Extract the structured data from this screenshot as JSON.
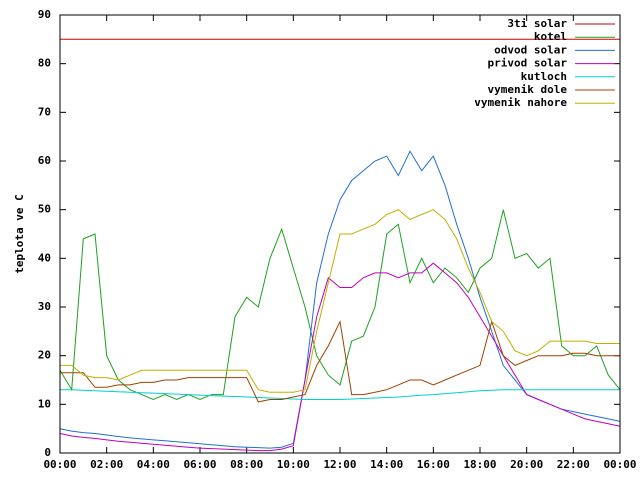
{
  "chart_data": {
    "type": "line",
    "ylabel": "teplota ve C",
    "x": [
      0,
      0.5,
      1,
      1.5,
      2,
      2.5,
      3,
      3.5,
      4,
      4.5,
      5,
      5.5,
      6,
      6.5,
      7,
      7.5,
      8,
      8.5,
      9,
      9.5,
      10,
      10.5,
      11,
      11.5,
      12,
      12.5,
      13,
      13.5,
      14,
      14.5,
      15,
      15.5,
      16,
      16.5,
      17,
      17.5,
      18,
      18.5,
      19,
      19.5,
      20,
      20.5,
      21,
      21.5,
      22,
      22.5,
      23,
      23.5,
      24
    ],
    "xlim": [
      0,
      24
    ],
    "xticks": [
      {
        "value": 0,
        "label": "00:00"
      },
      {
        "value": 2,
        "label": "02:00"
      },
      {
        "value": 4,
        "label": "04:00"
      },
      {
        "value": 6,
        "label": "06:00"
      },
      {
        "value": 8,
        "label": "08:00"
      },
      {
        "value": 10,
        "label": "10:00"
      },
      {
        "value": 12,
        "label": "12:00"
      },
      {
        "value": 14,
        "label": "14:00"
      },
      {
        "value": 16,
        "label": "16:00"
      },
      {
        "value": 18,
        "label": "18:00"
      },
      {
        "value": 20,
        "label": "20:00"
      },
      {
        "value": 22,
        "label": "22:00"
      },
      {
        "value": 24,
        "label": "00:00"
      }
    ],
    "ylim": [
      0,
      90
    ],
    "yticks": [
      0,
      10,
      20,
      30,
      40,
      50,
      60,
      70,
      80,
      90
    ],
    "legend": "top-right",
    "series": [
      {
        "name": "3ti solar",
        "color": "#cc0000",
        "values": [
          85,
          85,
          85,
          85,
          85,
          85,
          85,
          85,
          85,
          85,
          85,
          85,
          85,
          85,
          85,
          85,
          85,
          85,
          85,
          85,
          85,
          85,
          85,
          85,
          85,
          85,
          85,
          85,
          85,
          85,
          85,
          85,
          85,
          85,
          85,
          85,
          85,
          85,
          85,
          85,
          85,
          85,
          85,
          85,
          85,
          85,
          85,
          85,
          85
        ]
      },
      {
        "name": "kotel",
        "color": "#20a020",
        "values": [
          17,
          13,
          44,
          45,
          20,
          15,
          13,
          12,
          11,
          12,
          11,
          12,
          11,
          12,
          12,
          28,
          32,
          30,
          40,
          46,
          38,
          30,
          20,
          16,
          14,
          23,
          24,
          30,
          45,
          47,
          35,
          40,
          35,
          38,
          36,
          33,
          38,
          40,
          50,
          40,
          41,
          38,
          40,
          22,
          20,
          20,
          22,
          16,
          13
        ]
      },
      {
        "name": "odvod solar",
        "color": "#2070d0",
        "values": [
          5,
          4.5,
          4.2,
          4,
          3.7,
          3.4,
          3.1,
          2.9,
          2.7,
          2.5,
          2.3,
          2.1,
          1.9,
          1.7,
          1.5,
          1.3,
          1.2,
          1.1,
          1,
          1.2,
          2,
          15,
          35,
          45,
          52,
          56,
          58,
          60,
          61,
          57,
          62,
          58,
          61,
          55,
          47,
          40,
          32,
          25,
          18,
          15,
          12,
          11,
          10,
          9,
          8.5,
          8,
          7.5,
          7,
          6.5
        ]
      },
      {
        "name": "privod solar",
        "color": "#c000c0",
        "values": [
          4,
          3.5,
          3.2,
          3,
          2.7,
          2.4,
          2.2,
          2,
          1.8,
          1.6,
          1.4,
          1.2,
          1,
          0.9,
          0.8,
          0.7,
          0.6,
          0.5,
          0.5,
          0.8,
          1.5,
          15,
          28,
          36,
          34,
          34,
          36,
          37,
          37,
          36,
          37,
          37,
          39,
          37,
          35,
          32,
          28,
          24,
          20,
          16,
          12,
          11,
          10,
          9,
          8,
          7,
          6.5,
          6,
          5.5
        ]
      },
      {
        "name": "kutloch",
        "color": "#00d0d0",
        "values": [
          13,
          13,
          12.9,
          12.8,
          12.7,
          12.6,
          12.5,
          12.4,
          12.3,
          12.2,
          12.1,
          12,
          11.9,
          11.8,
          11.7,
          11.6,
          11.5,
          11.4,
          11.3,
          11.2,
          11.1,
          11,
          11,
          11,
          11,
          11.1,
          11.2,
          11.3,
          11.4,
          11.5,
          11.7,
          11.9,
          12,
          12.2,
          12.4,
          12.6,
          12.8,
          12.9,
          13,
          13,
          13,
          13,
          13,
          13,
          13,
          13,
          13,
          13,
          13
        ]
      },
      {
        "name": "vymenik dole",
        "color": "#a04000",
        "values": [
          16.5,
          16.5,
          16.5,
          13.5,
          13.5,
          14,
          14,
          14.5,
          14.5,
          15,
          15,
          15.5,
          15.5,
          15.5,
          15.5,
          15.5,
          15.5,
          10.5,
          11,
          11,
          11.5,
          12,
          18,
          22,
          27,
          12,
          12,
          12.5,
          13,
          14,
          15,
          15,
          14,
          15,
          16,
          17,
          18,
          27,
          20,
          18,
          19,
          20,
          20,
          20,
          20.5,
          20.5,
          20,
          20,
          20
        ]
      },
      {
        "name": "vymenik nahore",
        "color": "#c0b000",
        "values": [
          18,
          18,
          16,
          15.5,
          15.5,
          15,
          16,
          17,
          17,
          17,
          17,
          17,
          17,
          17,
          17,
          17,
          17,
          13,
          12.5,
          12.5,
          12.5,
          13,
          25,
          35,
          45,
          45,
          46,
          47,
          49,
          50,
          48,
          49,
          50,
          48,
          44,
          38,
          33,
          27,
          25,
          21,
          20,
          21,
          23,
          23,
          23,
          23,
          22.5,
          22.5,
          22.5
        ]
      }
    ]
  }
}
